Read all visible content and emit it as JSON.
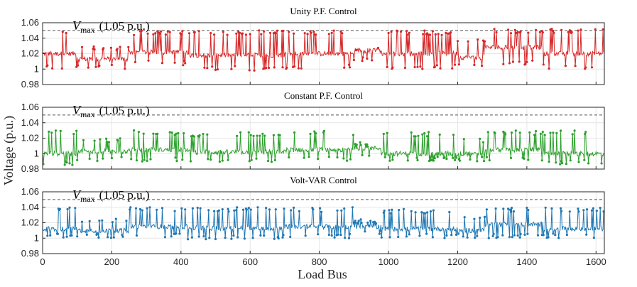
{
  "chart_data": [
    {
      "type": "line",
      "title": "Unity P.F. Control",
      "color": "#d62728",
      "xlim": [
        0,
        1624
      ],
      "ylim": [
        0.98,
        1.06
      ],
      "yticks": [
        "0.98",
        "1",
        "1.02",
        "1.04",
        "1.06"
      ],
      "yticks_values": [
        0.98,
        1.0,
        1.02,
        1.04,
        1.06
      ],
      "vmax": 1.05,
      "vmax_label": {
        "symbol": "V",
        "sub": "max",
        "text": "(1.05 p.u.)"
      },
      "series_name": "Unity P.F. Control voltage",
      "segments": [
        {
          "x": [
            0,
            100
          ],
          "mean": 1.02,
          "low": 1.0,
          "high": 1.05
        },
        {
          "x": [
            100,
            250
          ],
          "mean": 1.013,
          "low": 1.0,
          "high": 1.03
        },
        {
          "x": [
            250,
            420
          ],
          "mean": 1.022,
          "low": 1.005,
          "high": 1.05
        },
        {
          "x": [
            420,
            700
          ],
          "mean": 1.018,
          "low": 0.998,
          "high": 1.05
        },
        {
          "x": [
            700,
            900
          ],
          "mean": 1.02,
          "low": 1.0,
          "high": 1.05
        },
        {
          "x": [
            900,
            980
          ],
          "mean": 1.024,
          "low": 1.01,
          "high": 1.03
        },
        {
          "x": [
            980,
            1200
          ],
          "mean": 1.02,
          "low": 1.0,
          "high": 1.05
        },
        {
          "x": [
            1200,
            1280
          ],
          "mean": 1.015,
          "low": 1.0,
          "high": 1.04
        },
        {
          "x": [
            1280,
            1450
          ],
          "mean": 1.028,
          "low": 1.005,
          "high": 1.052
        },
        {
          "x": [
            1450,
            1624
          ],
          "mean": 1.02,
          "low": 1.0,
          "high": 1.052
        }
      ]
    },
    {
      "type": "line",
      "title": "Constant P.F. Control",
      "color": "#2ca02c",
      "xlim": [
        0,
        1624
      ],
      "ylim": [
        0.98,
        1.06
      ],
      "yticks": [
        "0.98",
        "1",
        "1.02",
        "1.04",
        "1.06"
      ],
      "yticks_values": [
        0.98,
        1.0,
        1.02,
        1.04,
        1.06
      ],
      "vmax": 1.05,
      "vmax_label": {
        "symbol": "V",
        "sub": "max",
        "text": "(1.05 p.u.)"
      },
      "series_name": "Constant P.F. Control voltage",
      "segments": [
        {
          "x": [
            0,
            100
          ],
          "mean": 1.0,
          "low": 0.985,
          "high": 1.03
        },
        {
          "x": [
            100,
            250
          ],
          "mean": 1.003,
          "low": 0.99,
          "high": 1.02
        },
        {
          "x": [
            250,
            420
          ],
          "mean": 1.005,
          "low": 0.99,
          "high": 1.03
        },
        {
          "x": [
            420,
            700
          ],
          "mean": 1.002,
          "low": 0.988,
          "high": 1.028
        },
        {
          "x": [
            700,
            900
          ],
          "mean": 1.005,
          "low": 0.99,
          "high": 1.03
        },
        {
          "x": [
            900,
            980
          ],
          "mean": 1.007,
          "low": 0.995,
          "high": 1.015
        },
        {
          "x": [
            980,
            1200
          ],
          "mean": 1.0,
          "low": 0.99,
          "high": 1.028
        },
        {
          "x": [
            1200,
            1280
          ],
          "mean": 1.0,
          "low": 0.99,
          "high": 1.02
        },
        {
          "x": [
            1280,
            1450
          ],
          "mean": 1.005,
          "low": 0.99,
          "high": 1.03
        },
        {
          "x": [
            1450,
            1624
          ],
          "mean": 1.0,
          "low": 0.986,
          "high": 1.03
        }
      ]
    },
    {
      "type": "line",
      "title": "Volt-VAR Control",
      "color": "#1f77b4",
      "xlim": [
        0,
        1624
      ],
      "ylim": [
        0.98,
        1.06
      ],
      "yticks": [
        "0.98",
        "1",
        "1.02",
        "1.04",
        "1.06"
      ],
      "yticks_values": [
        0.98,
        1.0,
        1.02,
        1.04,
        1.06
      ],
      "vmax": 1.05,
      "vmax_label": {
        "symbol": "V",
        "sub": "max",
        "text": "(1.05 p.u.)"
      },
      "series_name": "Volt-VAR Control voltage",
      "segments": [
        {
          "x": [
            0,
            100
          ],
          "mean": 1.012,
          "low": 1.0,
          "high": 1.04
        },
        {
          "x": [
            100,
            250
          ],
          "mean": 1.01,
          "low": 1.0,
          "high": 1.025
        },
        {
          "x": [
            250,
            420
          ],
          "mean": 1.015,
          "low": 1.0,
          "high": 1.04
        },
        {
          "x": [
            420,
            700
          ],
          "mean": 1.013,
          "low": 0.998,
          "high": 1.04
        },
        {
          "x": [
            700,
            900
          ],
          "mean": 1.015,
          "low": 1.0,
          "high": 1.04
        },
        {
          "x": [
            900,
            980
          ],
          "mean": 1.015,
          "low": 1.005,
          "high": 1.025
        },
        {
          "x": [
            980,
            1200
          ],
          "mean": 1.012,
          "low": 1.0,
          "high": 1.038
        },
        {
          "x": [
            1200,
            1280
          ],
          "mean": 1.01,
          "low": 1.0,
          "high": 1.03
        },
        {
          "x": [
            1280,
            1450
          ],
          "mean": 1.018,
          "low": 1.0,
          "high": 1.04
        },
        {
          "x": [
            1450,
            1624
          ],
          "mean": 1.012,
          "low": 1.0,
          "high": 1.04
        }
      ]
    }
  ],
  "shared": {
    "xlabel": "Load Bus",
    "ylabel": "Voltage (p.u.)",
    "xticks": [
      "0",
      "200",
      "400",
      "600",
      "800",
      "1000",
      "1200",
      "1400",
      "1600"
    ],
    "xticks_values": [
      0,
      200,
      400,
      600,
      800,
      1000,
      1200,
      1400,
      1600
    ],
    "grid": true
  }
}
